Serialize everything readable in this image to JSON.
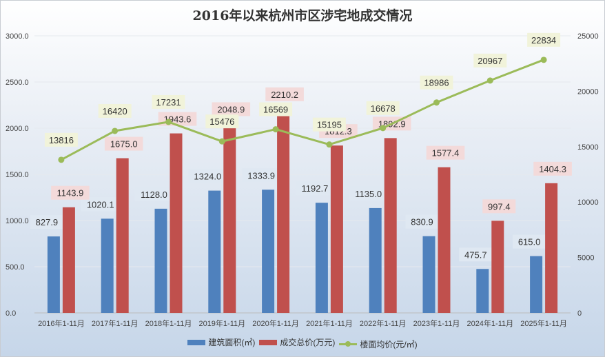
{
  "chart_data": {
    "type": "bar",
    "title": "2016年以来杭州市区涉宅地成交情况",
    "categories": [
      "2016年1-11月",
      "2017年1-11月",
      "2018年1-11月",
      "2019年1-11月",
      "2020年1-11月",
      "2021年1-11月",
      "2022年1-11月",
      "2023年1-11月",
      "2024年1-11月",
      "2025年1-11月"
    ],
    "series": [
      {
        "name": "建筑面积(㎡)",
        "type": "bar",
        "axis": "left",
        "color": "#4f81bd",
        "values": [
          827.9,
          1020.1,
          1128.0,
          1324.0,
          1333.9,
          1192.7,
          1135.0,
          830.9,
          475.7,
          615.0
        ]
      },
      {
        "name": "成交总价(万元)",
        "type": "bar",
        "axis": "left",
        "color": "#c0504d",
        "values": [
          1143.9,
          1675.0,
          1943.6,
          2048.9,
          2210.2,
          1812.3,
          1892.9,
          1577.4,
          997.4,
          1404.3
        ]
      },
      {
        "name": "楼面均价(元/㎡)",
        "type": "line",
        "axis": "right",
        "color": "#9bbb59",
        "values": [
          13816,
          16420,
          17231,
          15476,
          16569,
          15195,
          16678,
          18986,
          20967,
          22834
        ]
      }
    ],
    "y_left": {
      "range": [
        0,
        3000
      ],
      "ticks": [
        "0.0",
        "500.0",
        "1000.0",
        "1500.0",
        "2000.0",
        "2500.0",
        "3000.0"
      ]
    },
    "y_right": {
      "range": [
        0,
        25000
      ],
      "ticks": [
        "0",
        "5000",
        "10000",
        "15000",
        "20000",
        "25000"
      ]
    },
    "grid": true,
    "legend": "bottom",
    "data_labels": true
  }
}
